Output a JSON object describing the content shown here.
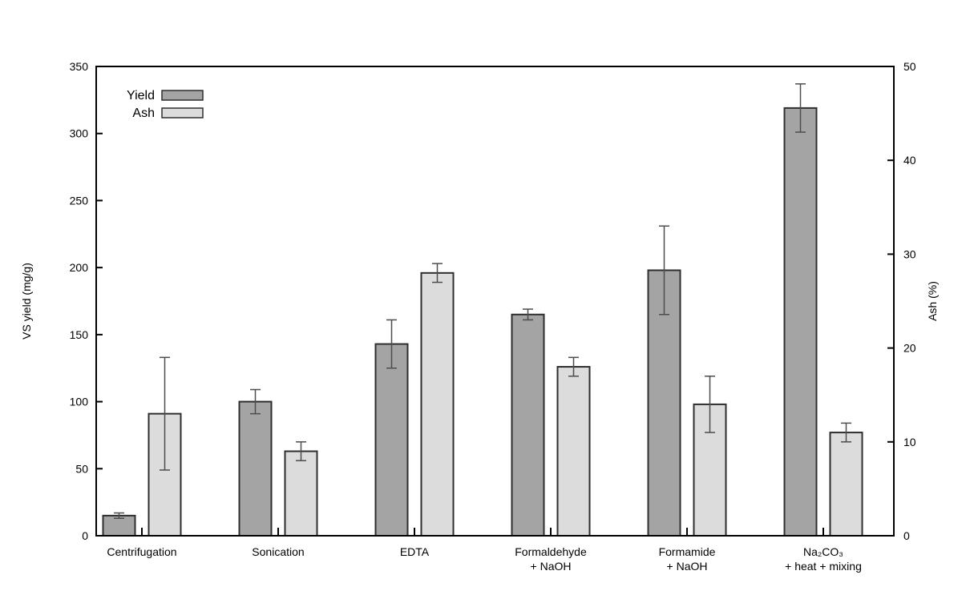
{
  "chart_data": {
    "type": "bar",
    "title": "",
    "grid": false,
    "background": "#ffffff",
    "frame_color": "#000000",
    "bar_border_color": "#2e2e2e",
    "error_bar_color": "#4d4d4d",
    "categories": [
      {
        "lines": [
          "Centrifugation"
        ]
      },
      {
        "lines": [
          "Sonication"
        ]
      },
      {
        "lines": [
          "EDTA"
        ]
      },
      {
        "lines": [
          "Formaldehyde",
          "+ NaOH"
        ]
      },
      {
        "lines": [
          "Formamide",
          "+ NaOH"
        ]
      },
      {
        "lines": [
          "Na₂CO₃",
          "+ heat + mixing"
        ]
      }
    ],
    "series": [
      {
        "name": "Yield",
        "axis": "left",
        "color": "#a4a4a4",
        "values": [
          15,
          100,
          143,
          165,
          198,
          319
        ],
        "errors": [
          2,
          9,
          18,
          4,
          33,
          18
        ]
      },
      {
        "name": "Ash",
        "axis": "right",
        "color": "#dcdcdc",
        "values": [
          13,
          9,
          28,
          18,
          14,
          11
        ],
        "errors": [
          6,
          1,
          1,
          1,
          3,
          1
        ]
      }
    ],
    "left_axis": {
      "label": "VS yield (mg/g)",
      "min": 0,
      "max": 350,
      "tick_step": 50,
      "tick_labels": [
        "0",
        "50",
        "100",
        "150",
        "200",
        "250",
        "300",
        "350"
      ]
    },
    "right_axis": {
      "label": "Ash (%)",
      "min": 0,
      "max": 50,
      "tick_step": 10,
      "tick_labels": [
        "0",
        "10",
        "20",
        "30",
        "40",
        "50"
      ]
    },
    "legend": {
      "position": "top-left",
      "entries": [
        "Yield",
        "Ash"
      ]
    }
  }
}
